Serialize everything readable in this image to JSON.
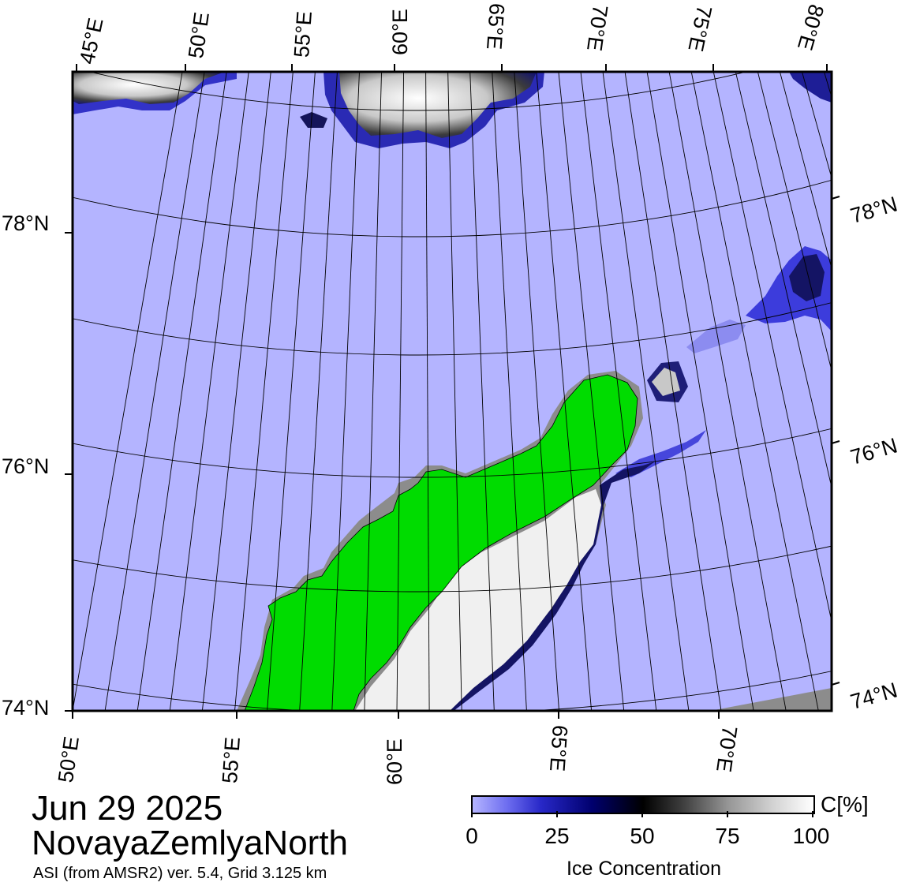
{
  "map": {
    "top_lon_labels": [
      "45°E",
      "50°E",
      "55°E",
      "60°E",
      "65°E",
      "70°E",
      "75°E",
      "80°E"
    ],
    "bottom_lon_labels": [
      "50°E",
      "55°E",
      "60°E",
      "65°E",
      "70°E"
    ],
    "left_lat_labels": [
      "78°N",
      "76°N",
      "74°N"
    ],
    "right_lat_labels": [
      "78°N",
      "76°N",
      "74°N"
    ],
    "colors": {
      "open_water": "#b4b4ff",
      "land": "#00dc00",
      "coast_mask": "#8c8c8c",
      "ice_low": "#2828c8",
      "ice_mid": "#000000",
      "ice_high": "#ffffff"
    }
  },
  "title": {
    "date": "Jun 29 2025",
    "region": "NovayaZemlyaNorth",
    "product": "ASI (from AMSR2) ver. 5.4,  Grid 3.125 km"
  },
  "colorbar": {
    "ticks": [
      "0",
      "25",
      "50",
      "75",
      "100"
    ],
    "unit": "C[%]",
    "label": "Ice Concentration"
  }
}
